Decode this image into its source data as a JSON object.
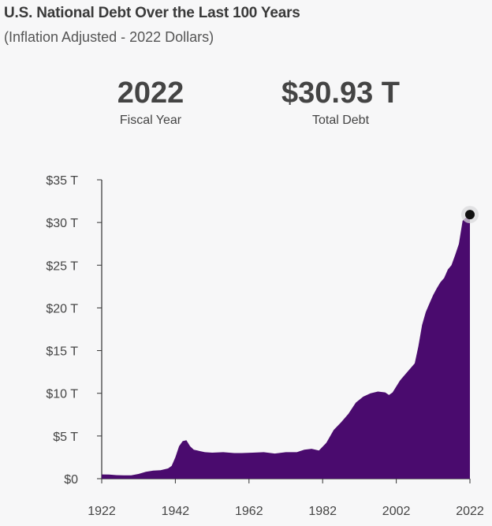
{
  "header": {
    "title": "U.S. National Debt Over the Last 100 Years",
    "subtitle": "(Inflation Adjusted - 2022 Dollars)"
  },
  "kpis": {
    "year_value": "2022",
    "year_label": "Fiscal Year",
    "debt_value": "$30.93 T",
    "debt_label": "Total Debt"
  },
  "colors": {
    "area_fill": "#4a0b6e",
    "axis": "#333333",
    "marker": "#111111",
    "marker_halo": "#d9d9dc"
  },
  "chart_data": {
    "type": "area",
    "title": "U.S. National Debt Over the Last 100 Years",
    "subtitle": "(Inflation Adjusted - 2022 Dollars)",
    "xlabel": "",
    "ylabel": "",
    "unit": "Trillions of 2022 dollars",
    "xlim": [
      1922,
      2022
    ],
    "ylim": [
      0,
      35
    ],
    "x_ticks": [
      1922,
      1942,
      1962,
      1982,
      2002,
      2022
    ],
    "x_tick_labels": [
      "1922",
      "1942",
      "1962",
      "1982",
      "2002",
      "2022"
    ],
    "y_ticks": [
      0,
      5,
      10,
      15,
      20,
      25,
      30,
      35
    ],
    "y_tick_labels": [
      "$0",
      "$5 T",
      "$10 T",
      "$15 T",
      "$20 T",
      "$25 T",
      "$30 T",
      "$35 T"
    ],
    "grid": false,
    "highlight": {
      "x": 2022,
      "y": 30.93
    },
    "series": [
      {
        "x": [
          1922,
          1924,
          1926,
          1928,
          1930,
          1932,
          1934,
          1936,
          1938,
          1940,
          1941,
          1942,
          1943,
          1944,
          1945,
          1946,
          1947,
          1948,
          1950,
          1952,
          1955,
          1958,
          1960,
          1963,
          1966,
          1969,
          1972,
          1975,
          1977,
          1979,
          1981,
          1983,
          1985,
          1987,
          1989,
          1991,
          1993,
          1995,
          1997,
          1999,
          2000,
          2001,
          2003,
          2005,
          2007,
          2008,
          2009,
          2010,
          2011,
          2012,
          2013,
          2014,
          2015,
          2016,
          2017,
          2018,
          2019,
          2020,
          2021,
          2022
        ],
        "values": [
          0.5,
          0.48,
          0.42,
          0.4,
          0.4,
          0.55,
          0.8,
          0.95,
          1.0,
          1.2,
          1.5,
          2.5,
          3.8,
          4.4,
          4.5,
          3.8,
          3.4,
          3.3,
          3.1,
          3.05,
          3.1,
          3.0,
          3.0,
          3.05,
          3.1,
          2.95,
          3.1,
          3.1,
          3.4,
          3.5,
          3.3,
          4.2,
          5.7,
          6.6,
          7.6,
          8.9,
          9.6,
          10.0,
          10.2,
          10.1,
          9.8,
          10.1,
          11.5,
          12.5,
          13.5,
          15.5,
          18.0,
          19.5,
          20.5,
          21.5,
          22.3,
          23.0,
          23.5,
          24.5,
          25.0,
          26.2,
          27.5,
          30.2,
          30.6,
          30.93
        ]
      }
    ]
  }
}
